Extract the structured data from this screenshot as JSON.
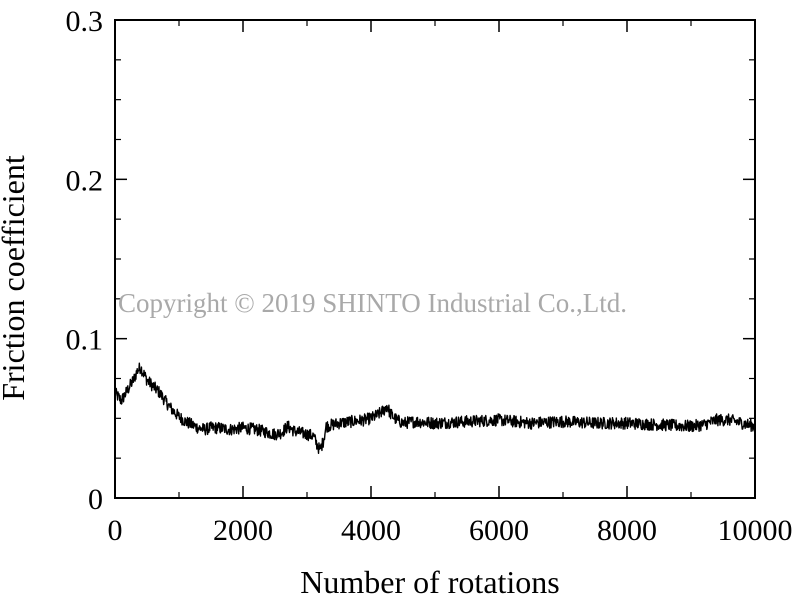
{
  "chart_data": {
    "type": "line",
    "xlabel": "Number of rotations",
    "ylabel": "Friction coefficient",
    "xlim": [
      0,
      10000
    ],
    "ylim": [
      0,
      0.3
    ],
    "x_ticks": [
      0,
      2000,
      4000,
      6000,
      8000,
      10000
    ],
    "y_ticks": [
      0,
      0.1,
      0.2,
      0.3
    ],
    "x_tick_labels": [
      "0",
      "2000",
      "4000",
      "6000",
      "8000",
      "10000"
    ],
    "y_tick_labels": [
      "0",
      "0.1",
      "0.2",
      "0.3"
    ],
    "grid": false,
    "line_color": "#000000",
    "series": [
      {
        "x": [
          0,
          100,
          200,
          300,
          350,
          400,
          450,
          500,
          600,
          700,
          800,
          900,
          1000,
          1100,
          1200,
          1300,
          1400,
          1500,
          1600,
          1800,
          2000,
          2200,
          2400,
          2500,
          2600,
          2700,
          2800,
          2900,
          3000,
          3100,
          3150,
          3200,
          3250,
          3300,
          3400,
          3500,
          3700,
          3900,
          4000,
          4100,
          4200,
          4250,
          4300,
          4400,
          4500,
          4700,
          5000,
          5500,
          6000,
          6500,
          7000,
          7500,
          8000,
          8500,
          9000,
          9200,
          9400,
          9600,
          9800,
          10000
        ],
        "values": [
          0.066,
          0.061,
          0.068,
          0.075,
          0.08,
          0.082,
          0.078,
          0.074,
          0.07,
          0.066,
          0.06,
          0.055,
          0.051,
          0.048,
          0.046,
          0.044,
          0.043,
          0.044,
          0.044,
          0.043,
          0.044,
          0.043,
          0.041,
          0.04,
          0.041,
          0.045,
          0.042,
          0.041,
          0.04,
          0.039,
          0.034,
          0.03,
          0.035,
          0.045,
          0.046,
          0.047,
          0.048,
          0.049,
          0.05,
          0.052,
          0.055,
          0.058,
          0.053,
          0.049,
          0.047,
          0.048,
          0.047,
          0.048,
          0.049,
          0.047,
          0.048,
          0.047,
          0.047,
          0.046,
          0.045,
          0.046,
          0.049,
          0.049,
          0.047,
          0.045
        ]
      }
    ]
  },
  "watermark": "Copyright © 2019 SHINTO Industrial Co.,Ltd."
}
